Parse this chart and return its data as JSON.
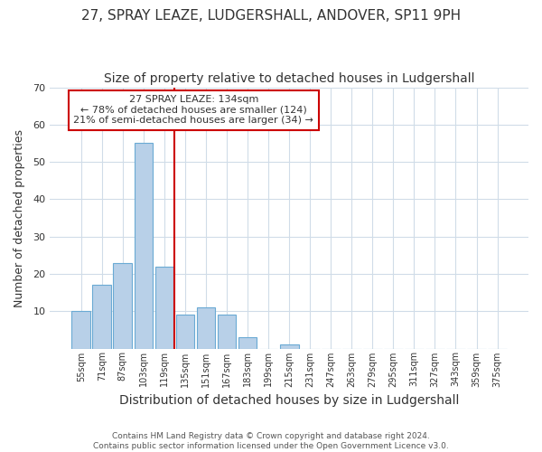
{
  "title1": "27, SPRAY LEAZE, LUDGERSHALL, ANDOVER, SP11 9PH",
  "title2": "Size of property relative to detached houses in Ludgershall",
  "xlabel": "Distribution of detached houses by size in Ludgershall",
  "ylabel": "Number of detached properties",
  "bar_labels": [
    "55sqm",
    "71sqm",
    "87sqm",
    "103sqm",
    "119sqm",
    "135sqm",
    "151sqm",
    "167sqm",
    "183sqm",
    "199sqm",
    "215sqm",
    "231sqm",
    "247sqm",
    "263sqm",
    "279sqm",
    "295sqm",
    "311sqm",
    "327sqm",
    "343sqm",
    "359sqm",
    "375sqm"
  ],
  "bar_values": [
    10,
    17,
    23,
    55,
    22,
    9,
    11,
    9,
    3,
    0,
    1,
    0,
    0,
    0,
    0,
    0,
    0,
    0,
    0,
    0,
    0
  ],
  "bar_color": "#b8d0e8",
  "bar_edge_color": "#6aaad4",
  "vline_color": "#cc0000",
  "ylim": [
    0,
    70
  ],
  "yticks": [
    10,
    20,
    30,
    40,
    50,
    60,
    70
  ],
  "annotation_line1": "27 SPRAY LEAZE: 134sqm",
  "annotation_line2": "← 78% of detached houses are smaller (124)",
  "annotation_line3": "21% of semi-detached houses are larger (34) →",
  "annotation_box_color": "white",
  "annotation_box_edge": "#cc0000",
  "footer1": "Contains HM Land Registry data © Crown copyright and database right 2024.",
  "footer2": "Contains public sector information licensed under the Open Government Licence v3.0.",
  "fig_background": "#ffffff",
  "plot_background": "#ffffff",
  "grid_color": "#d0dce8",
  "title1_fontsize": 11,
  "title2_fontsize": 10,
  "xlabel_fontsize": 10,
  "ylabel_fontsize": 9,
  "footer_fontsize": 6.5
}
